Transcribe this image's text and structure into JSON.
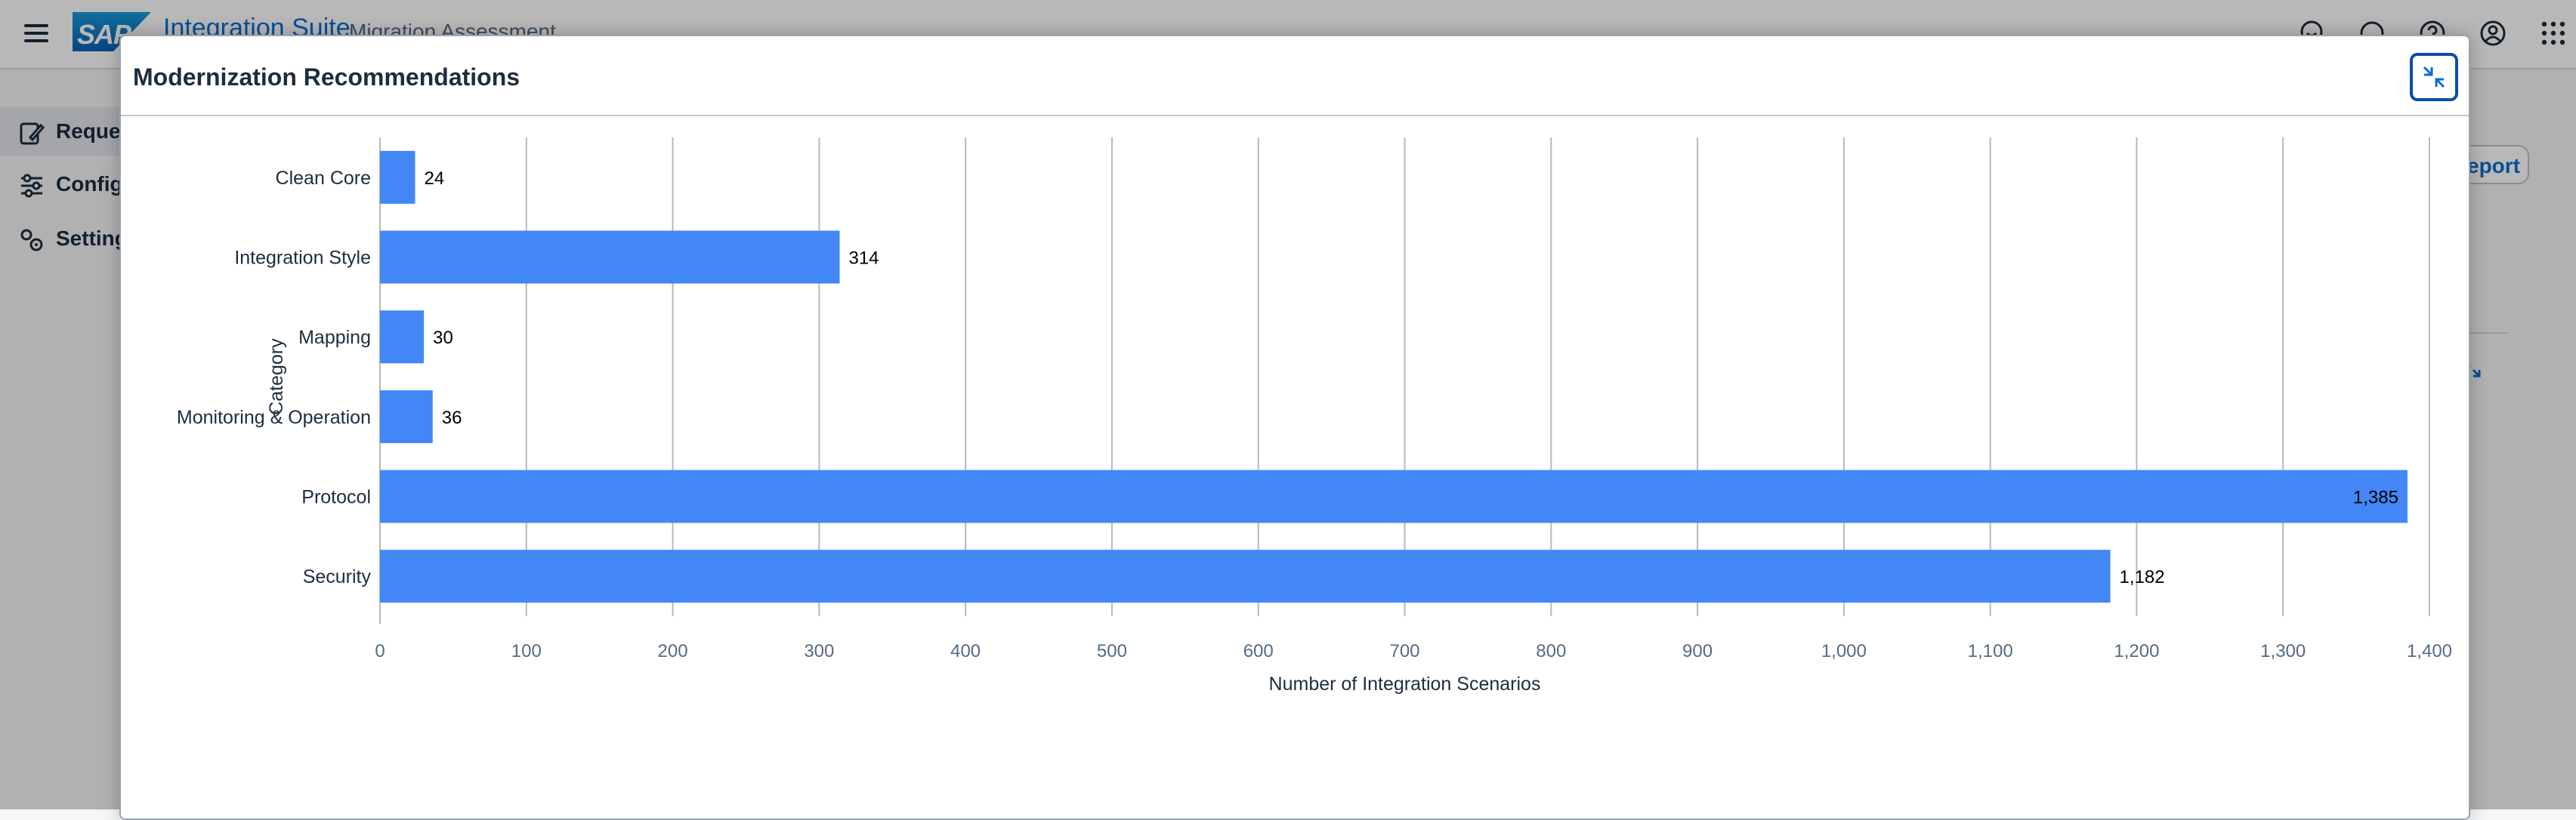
{
  "shell": {
    "product_title": "Integration Suite",
    "product_subtitle": "Migration Assessment",
    "icons": [
      "hamburger-icon",
      "sap-logo",
      "feedback-icon",
      "support-icon",
      "help-icon",
      "user-icon",
      "apps-grid-icon"
    ]
  },
  "side_nav": {
    "items": [
      {
        "label": "Reque",
        "icon": "edit-request-icon"
      },
      {
        "label": "Config",
        "icon": "sliders-icon"
      },
      {
        "label": "Setting",
        "icon": "gears-icon"
      }
    ]
  },
  "background": {
    "report_button_label": "eport"
  },
  "dialog": {
    "title": "Modernization Recommendations",
    "collapse_icon": "exit-fullscreen-icon"
  },
  "colors": {
    "bar": "#4287f5",
    "grid": "#b0bac4",
    "axis_text": "#556b82",
    "label_text": "#1d2d3e"
  },
  "chart_data": {
    "type": "bar",
    "orientation": "horizontal",
    "categories": [
      "Clean Core",
      "Integration Style",
      "Mapping",
      "Monitoring & Operation",
      "Protocol",
      "Security"
    ],
    "values": [
      24,
      314,
      30,
      36,
      1385,
      1182
    ],
    "value_labels": [
      "24",
      "314",
      "30",
      "36",
      "1,385",
      "1,182"
    ],
    "xlabel": "Number of Integration Scenarios",
    "ylabel": "Category",
    "xlim": [
      0,
      1400
    ],
    "x_ticks": [
      "0",
      "100",
      "200",
      "300",
      "400",
      "500",
      "600",
      "700",
      "800",
      "900",
      "1,000",
      "1,100",
      "1,200",
      "1,300",
      "1,400"
    ],
    "grid": true,
    "legend": "none"
  }
}
